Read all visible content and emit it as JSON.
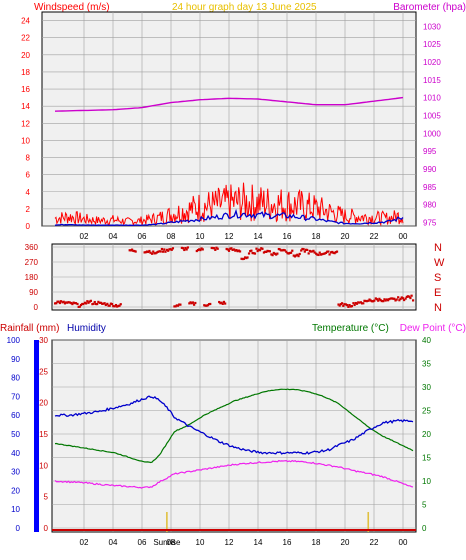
{
  "header": {
    "left_label": "Windspeed (m/s)",
    "center_label": "24 hour graph day   13 June 2025",
    "right_label": "Barometer (hpa)"
  },
  "colors": {
    "wind": "#ff0000",
    "gust_avg": "#0000cc",
    "barometer": "#cc00cc",
    "humidity": "#0000cc",
    "temperature": "#007700",
    "dewpoint": "#ee22ee",
    "rain": "#cc0000",
    "sun_marker": "#e0c040",
    "plot_bg": "#f0f0f0",
    "grid": "#a0a0a0"
  },
  "chart_data": [
    {
      "type": "line",
      "title": "",
      "x_ticks": [
        "02",
        "04",
        "06",
        "08",
        "10",
        "12",
        "14",
        "16",
        "18",
        "20",
        "22",
        "00"
      ],
      "left_axis": {
        "label": "Windspeed (m/s)",
        "ticks": [
          "0",
          "2",
          "4",
          "6",
          "8",
          "10",
          "12",
          "14",
          "16",
          "18",
          "20",
          "22",
          "24"
        ],
        "range": [
          0,
          25
        ]
      },
      "right_axis": {
        "label": "Barometer (hpa)",
        "ticks": [
          "975",
          "980",
          "985",
          "990",
          "995",
          "1000",
          "1005",
          "1010",
          "1015",
          "1020",
          "1025",
          "1030"
        ],
        "range": [
          974,
          1034
        ]
      },
      "series": [
        {
          "name": "Windspeed",
          "axis": "left",
          "hours": [
            0,
            1,
            2,
            3,
            4,
            5,
            6,
            7,
            8,
            9,
            10,
            11,
            12,
            13,
            14,
            15,
            16,
            17,
            18,
            19,
            20,
            21,
            22,
            23,
            24
          ],
          "values": [
            1.0,
            1.2,
            0.9,
            0.7,
            0.8,
            0.6,
            0.7,
            1.0,
            1.5,
            2.0,
            2.5,
            2.7,
            3.0,
            3.1,
            3.0,
            2.9,
            2.8,
            2.6,
            2.3,
            1.8,
            1.3,
            1.2,
            1.1,
            1.0,
            1.4
          ]
        },
        {
          "name": "Average windspeed",
          "axis": "left",
          "hours": [
            0,
            1,
            2,
            3,
            4,
            5,
            6,
            7,
            8,
            9,
            10,
            11,
            12,
            13,
            14,
            15,
            16,
            17,
            18,
            19,
            20,
            21,
            22,
            23,
            24
          ],
          "values": [
            0.1,
            0.2,
            0.1,
            0.1,
            0.1,
            0.1,
            0.1,
            0.2,
            0.4,
            0.6,
            0.8,
            1.0,
            1.3,
            1.4,
            1.3,
            1.2,
            1.2,
            1.0,
            0.8,
            0.5,
            0.3,
            0.3,
            0.4,
            0.5,
            1.0
          ]
        },
        {
          "name": "Barometer",
          "axis": "right",
          "hours": [
            0,
            2,
            4,
            6,
            8,
            10,
            12,
            14,
            16,
            18,
            20,
            22,
            24
          ],
          "values": [
            1006.2,
            1006.4,
            1006.6,
            1007.2,
            1008.6,
            1009.4,
            1009.8,
            1009.6,
            1008.8,
            1008.0,
            1008.0,
            1009.0,
            1010.0
          ]
        }
      ]
    },
    {
      "type": "scatter",
      "title": "",
      "x_ticks": [
        "02",
        "04",
        "06",
        "08",
        "10",
        "12",
        "14",
        "16",
        "18",
        "20",
        "22",
        "00"
      ],
      "left_axis": {
        "ticks": [
          "0",
          "90",
          "180",
          "270",
          "360"
        ],
        "range": [
          0,
          360
        ]
      },
      "right_axis": {
        "ticks": [
          "N",
          "E",
          "S",
          "W",
          "N"
        ]
      },
      "series": [
        {
          "name": "Wind direction",
          "hours": [
            0,
            0.5,
            1,
            1.5,
            2,
            2.5,
            3,
            3.5,
            4,
            5,
            6,
            6.5,
            7,
            7.5,
            8,
            8.5,
            9,
            9.5,
            10,
            10.5,
            11,
            11.5,
            12,
            12.5,
            13,
            13.5,
            14,
            14.5,
            15,
            15.5,
            16,
            16.5,
            17,
            17.5,
            18,
            18.5,
            19,
            19.5,
            20,
            20.5,
            21,
            21.5,
            22,
            22.5,
            23,
            23.5,
            24
          ],
          "values": [
            30,
            25,
            20,
            10,
            30,
            25,
            20,
            15,
            10,
            340,
            335,
            325,
            340,
            345,
            10,
            350,
            20,
            345,
            15,
            350,
            25,
            345,
            340,
            290,
            330,
            345,
            335,
            320,
            345,
            330,
            310,
            340,
            330,
            320,
            325,
            330,
            15,
            10,
            20,
            30,
            40,
            45,
            40,
            45,
            50,
            60,
            45
          ]
        }
      ]
    },
    {
      "type": "line",
      "title": "",
      "x_ticks": [
        "02",
        "04",
        "06",
        "08",
        "10",
        "12",
        "14",
        "16",
        "18",
        "20",
        "22",
        "00"
      ],
      "axes_labels": {
        "rainfall": "Rainfall (mm)",
        "humidity": "Humidity",
        "temperature": "Temperature (°C)",
        "dewpoint": "Dew Point (°C)"
      },
      "humidity_axis": {
        "ticks": [
          "0",
          "10",
          "20",
          "30",
          "40",
          "50",
          "60",
          "70",
          "80",
          "90",
          "100"
        ],
        "range": [
          0,
          100
        ]
      },
      "rain_axis": {
        "ticks": [
          "0",
          "5",
          "10",
          "15",
          "20",
          "25",
          "30"
        ],
        "range": [
          0,
          30
        ]
      },
      "temp_axis": {
        "ticks": [
          "0",
          "5",
          "10",
          "15",
          "20",
          "25",
          "30",
          "35",
          "40"
        ],
        "range": [
          0,
          40
        ]
      },
      "sun_labels": {
        "sunrise": "Sunrise",
        "sunset": ""
      },
      "sunrise_hour": 7.5,
      "sunset_hour": 21.0,
      "series": [
        {
          "name": "Humidity",
          "axis": "humidity",
          "hours": [
            0,
            1,
            2,
            3,
            4,
            5,
            6,
            6.5,
            7,
            7.5,
            8,
            9,
            10,
            11,
            12,
            13,
            14,
            15,
            16,
            17,
            18,
            18.5,
            19,
            20,
            21,
            22,
            23,
            24
          ],
          "values": [
            60,
            60,
            61,
            62,
            64,
            66,
            69,
            70,
            68,
            64,
            59,
            54,
            50,
            46,
            43,
            41,
            40,
            40,
            40,
            40,
            41,
            42,
            44,
            47,
            52,
            56,
            57,
            57
          ]
        },
        {
          "name": "Temperature",
          "axis": "temp",
          "hours": [
            0,
            1,
            2,
            3,
            4,
            5,
            6,
            6.5,
            7,
            7.5,
            8,
            9,
            10,
            11,
            12,
            13,
            14,
            15,
            16,
            17,
            18,
            19,
            20,
            21,
            22,
            23,
            24
          ],
          "values": [
            18,
            17.5,
            17,
            16.5,
            16,
            15,
            14,
            14,
            15.5,
            18,
            20.5,
            22,
            24,
            25.5,
            27,
            28,
            29,
            29.5,
            29.5,
            29,
            28,
            26.5,
            24,
            21.5,
            19.5,
            18,
            16.5
          ]
        },
        {
          "name": "Dew Point",
          "axis": "temp",
          "hours": [
            0,
            1,
            2,
            3,
            4,
            5,
            6,
            6.5,
            7,
            8,
            9,
            10,
            11,
            12,
            13,
            14,
            15,
            16,
            17,
            18,
            19,
            20,
            21,
            22,
            23,
            24
          ],
          "values": [
            10,
            9.8,
            9.6,
            9.3,
            9,
            8.8,
            8.6,
            8.8,
            9.8,
            11.5,
            12,
            12.5,
            13,
            13.5,
            13.8,
            14,
            14.2,
            14.2,
            14,
            13.5,
            13,
            12.2,
            11.6,
            10.9,
            9.8,
            8.6
          ]
        },
        {
          "name": "Rainfall",
          "axis": "rain",
          "hours": [
            0,
            24
          ],
          "values": [
            0,
            0
          ]
        }
      ]
    }
  ]
}
